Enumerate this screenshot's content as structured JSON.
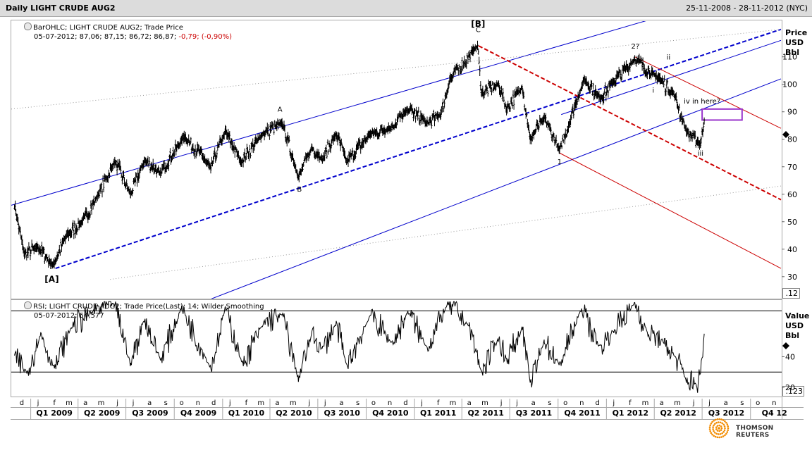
{
  "window": {
    "title": "Daily LIGHT CRUDE AUG2",
    "range": "25-11-2008 - 28-11-2012 (NYC)"
  },
  "price_panel": {
    "legend_line1": "BarOHLC; LIGHT CRUDE AUG2; Trade Price",
    "legend_line2_prefix": "05-07-2012; 87,06; 87,15; 86,72; 86,87;",
    "legend_line2_change": " -0,79; (-0,90%)",
    "axis_title": [
      "Price",
      "USD",
      "Bbl"
    ],
    "corner_label": ".12"
  },
  "rsi_panel": {
    "legend_line1": "RSI; LIGHT CRUDE AUG2; Trade Price(Last); 14; Wilder Smoothing",
    "legend_line2": "05-07-2012; 54,577",
    "axis_title": [
      "Value",
      "USD",
      "Bbl"
    ],
    "corner_label": ".123"
  },
  "branding": {
    "text": "THOMSON REUTERS",
    "logo_color": "#f28c00"
  },
  "chart_data": [
    {
      "type": "line",
      "chart_style": "ohlc-bars",
      "series": [
        {
          "color": "#000000"
        }
      ],
      "ylim": [
        22,
        123
      ],
      "yticks": [
        30,
        40,
        50,
        60,
        70,
        80,
        90,
        100,
        110
      ],
      "x_range": [
        "2008-11-25",
        "2012-11-28"
      ],
      "anchors": [
        [
          "2008-12-01",
          56
        ],
        [
          "2008-12-20",
          38
        ],
        [
          "2009-01-15",
          41
        ],
        [
          "2009-02-12",
          34
        ],
        [
          "2009-03-10",
          45
        ],
        [
          "2009-04-10",
          50
        ],
        [
          "2009-05-10",
          60
        ],
        [
          "2009-06-10",
          72
        ],
        [
          "2009-07-10",
          60
        ],
        [
          "2009-08-05",
          72
        ],
        [
          "2009-09-05",
          68
        ],
        [
          "2009-10-20",
          81
        ],
        [
          "2009-12-10",
          70
        ],
        [
          "2010-01-06",
          83
        ],
        [
          "2010-02-05",
          72
        ],
        [
          "2010-03-20",
          82
        ],
        [
          "2010-04-25",
          86
        ],
        [
          "2010-05-25",
          66
        ],
        [
          "2010-06-20",
          77
        ],
        [
          "2010-07-10",
          73
        ],
        [
          "2010-08-05",
          82
        ],
        [
          "2010-08-25",
          72
        ],
        [
          "2010-10-10",
          82
        ],
        [
          "2010-11-15",
          84
        ],
        [
          "2010-12-20",
          91
        ],
        [
          "2011-01-25",
          86
        ],
        [
          "2011-02-20",
          89
        ],
        [
          "2011-03-10",
          102
        ],
        [
          "2011-05-01",
          114
        ],
        [
          "2011-05-08",
          97
        ],
        [
          "2011-06-10",
          100
        ],
        [
          "2011-06-25",
          91
        ],
        [
          "2011-07-25",
          99
        ],
        [
          "2011-08-09",
          80
        ],
        [
          "2011-09-05",
          88
        ],
        [
          "2011-10-04",
          76
        ],
        [
          "2011-11-20",
          102
        ],
        [
          "2011-12-20",
          95
        ],
        [
          "2012-01-15",
          101
        ],
        [
          "2012-02-24",
          109
        ],
        [
          "2012-04-05",
          103
        ],
        [
          "2012-04-12",
          102
        ],
        [
          "2012-05-10",
          96
        ],
        [
          "2012-06-01",
          83
        ],
        [
          "2012-06-28",
          78
        ],
        [
          "2012-07-05",
          87
        ]
      ],
      "wave_labels": [
        {
          "text": "[A]",
          "date": "2009-02-10",
          "y": 28
        },
        {
          "text": "A",
          "date": "2010-04-20",
          "y": 90
        },
        {
          "text": "B",
          "date": "2010-05-27",
          "y": 61
        },
        {
          "text": "[B]",
          "date": "2011-05-02",
          "y": 121
        },
        {
          "text": "C",
          "date": "2011-05-02",
          "y": 119
        },
        {
          "text": "1",
          "date": "2011-10-04",
          "y": 71
        },
        {
          "text": "2?",
          "date": "2012-02-25",
          "y": 113
        },
        {
          "text": "ii",
          "date": "2012-04-28",
          "y": 109
        },
        {
          "text": "i",
          "date": "2012-03-30",
          "y": 97
        },
        {
          "text": "iii",
          "date": "2012-06-28",
          "y": 74
        },
        {
          "text": "iv in here?",
          "date": "2012-07-01",
          "y": 93
        }
      ],
      "trend_lines": [
        {
          "style": "solid",
          "color": "#0000cc",
          "from": [
            "2008-11-25",
            56
          ],
          "to": [
            "2012-04-01",
            124
          ]
        },
        {
          "style": "dashed",
          "color": "#0000cc",
          "from": [
            "2009-02-17",
            33
          ],
          "to": [
            "2012-11-28",
            120
          ]
        },
        {
          "style": "solid",
          "color": "#0000cc",
          "from": [
            "2011-10-07",
            89
          ],
          "to": [
            "2012-11-28",
            116
          ]
        },
        {
          "style": "solid",
          "color": "#0000cc",
          "from": [
            "2009-11-01",
            19
          ],
          "to": [
            "2012-11-28",
            102
          ]
        },
        {
          "style": "dotted",
          "color": "#999999",
          "from": [
            "2008-11-25",
            91
          ],
          "to": [
            "2012-11-28",
            120
          ]
        },
        {
          "style": "dotted",
          "color": "#999999",
          "from": [
            "2009-06-01",
            29
          ],
          "to": [
            "2012-11-28",
            63
          ]
        },
        {
          "style": "dashed",
          "color": "#cc0000",
          "from": [
            "2011-05-03",
            114
          ],
          "to": [
            "2012-11-28",
            58
          ]
        },
        {
          "style": "solid",
          "color": "#cc0000",
          "from": [
            "2012-02-24",
            110
          ],
          "to": [
            "2012-11-28",
            84
          ]
        },
        {
          "style": "solid",
          "color": "#cc0000",
          "from": [
            "2011-10-04",
            75
          ],
          "to": [
            "2012-11-28",
            33
          ]
        }
      ],
      "box": {
        "color": "#9933cc",
        "from_date": "2012-07-01",
        "to_date": "2012-09-15",
        "y_low": 87,
        "y_high": 91
      }
    },
    {
      "type": "line",
      "series": [
        {
          "color": "#000000"
        }
      ],
      "ylim": [
        14,
        77
      ],
      "yticks": [
        20,
        40
      ],
      "hlines": [
        30,
        70
      ],
      "anchors": [
        [
          "2008-12-01",
          40
        ],
        [
          "2008-12-25",
          30
        ],
        [
          "2009-01-20",
          55
        ],
        [
          "2009-02-15",
          32
        ],
        [
          "2009-03-20",
          60
        ],
        [
          "2009-05-01",
          70
        ],
        [
          "2009-06-10",
          75
        ],
        [
          "2009-07-10",
          35
        ],
        [
          "2009-08-05",
          65
        ],
        [
          "2009-09-05",
          38
        ],
        [
          "2009-10-15",
          72
        ],
        [
          "2009-12-10",
          32
        ],
        [
          "2010-01-06",
          72
        ],
        [
          "2010-02-08",
          35
        ],
        [
          "2010-03-20",
          62
        ],
        [
          "2010-04-25",
          68
        ],
        [
          "2010-05-25",
          25
        ],
        [
          "2010-06-20",
          55
        ],
        [
          "2010-07-10",
          45
        ],
        [
          "2010-08-05",
          62
        ],
        [
          "2010-08-25",
          34
        ],
        [
          "2010-10-10",
          68
        ],
        [
          "2010-11-20",
          48
        ],
        [
          "2010-12-20",
          70
        ],
        [
          "2011-01-25",
          45
        ],
        [
          "2011-03-05",
          75
        ],
        [
          "2011-04-15",
          60
        ],
        [
          "2011-05-08",
          30
        ],
        [
          "2011-06-10",
          52
        ],
        [
          "2011-06-25",
          38
        ],
        [
          "2011-07-25",
          58
        ],
        [
          "2011-08-09",
          22
        ],
        [
          "2011-09-05",
          50
        ],
        [
          "2011-10-04",
          35
        ],
        [
          "2011-11-15",
          72
        ],
        [
          "2011-12-20",
          45
        ],
        [
          "2012-01-15",
          58
        ],
        [
          "2012-02-24",
          75
        ],
        [
          "2012-03-20",
          55
        ],
        [
          "2012-04-20",
          50
        ],
        [
          "2012-05-10",
          40
        ],
        [
          "2012-06-01",
          25
        ],
        [
          "2012-06-21",
          22
        ],
        [
          "2012-06-28",
          30
        ],
        [
          "2012-07-05",
          55
        ]
      ]
    }
  ],
  "x_axis": {
    "months": [
      {
        "l": "d",
        "d": "2008-12-15"
      },
      {
        "l": "j",
        "d": "2009-01-15"
      },
      {
        "l": "f",
        "d": "2009-02-15"
      },
      {
        "l": "m",
        "d": "2009-03-15"
      },
      {
        "l": "a",
        "d": "2009-04-15"
      },
      {
        "l": "m",
        "d": "2009-05-15"
      },
      {
        "l": "j",
        "d": "2009-06-15"
      },
      {
        "l": "j",
        "d": "2009-07-15"
      },
      {
        "l": "a",
        "d": "2009-08-15"
      },
      {
        "l": "s",
        "d": "2009-09-15"
      },
      {
        "l": "o",
        "d": "2009-10-15"
      },
      {
        "l": "n",
        "d": "2009-11-15"
      },
      {
        "l": "d",
        "d": "2009-12-15"
      },
      {
        "l": "j",
        "d": "2010-01-15"
      },
      {
        "l": "f",
        "d": "2010-02-15"
      },
      {
        "l": "m",
        "d": "2010-03-15"
      },
      {
        "l": "a",
        "d": "2010-04-15"
      },
      {
        "l": "m",
        "d": "2010-05-15"
      },
      {
        "l": "j",
        "d": "2010-06-15"
      },
      {
        "l": "j",
        "d": "2010-07-15"
      },
      {
        "l": "a",
        "d": "2010-08-15"
      },
      {
        "l": "s",
        "d": "2010-09-15"
      },
      {
        "l": "o",
        "d": "2010-10-15"
      },
      {
        "l": "n",
        "d": "2010-11-15"
      },
      {
        "l": "d",
        "d": "2010-12-15"
      },
      {
        "l": "j",
        "d": "2011-01-15"
      },
      {
        "l": "f",
        "d": "2011-02-15"
      },
      {
        "l": "m",
        "d": "2011-03-15"
      },
      {
        "l": "a",
        "d": "2011-04-15"
      },
      {
        "l": "m",
        "d": "2011-05-15"
      },
      {
        "l": "j",
        "d": "2011-06-15"
      },
      {
        "l": "j",
        "d": "2011-07-15"
      },
      {
        "l": "a",
        "d": "2011-08-15"
      },
      {
        "l": "s",
        "d": "2011-09-15"
      },
      {
        "l": "o",
        "d": "2011-10-15"
      },
      {
        "l": "n",
        "d": "2011-11-15"
      },
      {
        "l": "d",
        "d": "2011-12-15"
      },
      {
        "l": "j",
        "d": "2012-01-15"
      },
      {
        "l": "f",
        "d": "2012-02-15"
      },
      {
        "l": "m",
        "d": "2012-03-15"
      },
      {
        "l": "a",
        "d": "2012-04-15"
      },
      {
        "l": "m",
        "d": "2012-05-15"
      },
      {
        "l": "j",
        "d": "2012-06-15"
      },
      {
        "l": "j",
        "d": "2012-07-15"
      },
      {
        "l": "a",
        "d": "2012-08-15"
      },
      {
        "l": "s",
        "d": "2012-09-15"
      },
      {
        "l": "o",
        "d": "2012-10-15"
      },
      {
        "l": "n",
        "d": "2012-11-15"
      }
    ],
    "quarters": [
      {
        "l": "Q1 2009",
        "s": "2009-01-01",
        "e": "2009-04-01"
      },
      {
        "l": "Q2 2009",
        "s": "2009-04-01",
        "e": "2009-07-01"
      },
      {
        "l": "Q3 2009",
        "s": "2009-07-01",
        "e": "2009-10-01"
      },
      {
        "l": "Q4 2009",
        "s": "2009-10-01",
        "e": "2010-01-01"
      },
      {
        "l": "Q1 2010",
        "s": "2010-01-01",
        "e": "2010-04-01"
      },
      {
        "l": "Q2 2010",
        "s": "2010-04-01",
        "e": "2010-07-01"
      },
      {
        "l": "Q3 2010",
        "s": "2010-07-01",
        "e": "2010-10-01"
      },
      {
        "l": "Q4 2010",
        "s": "2010-10-01",
        "e": "2011-01-01"
      },
      {
        "l": "Q1 2011",
        "s": "2011-01-01",
        "e": "2011-04-01"
      },
      {
        "l": "Q2 2011",
        "s": "2011-04-01",
        "e": "2011-07-01"
      },
      {
        "l": "Q3 2011",
        "s": "2011-07-01",
        "e": "2011-10-01"
      },
      {
        "l": "Q4 2011",
        "s": "2011-10-01",
        "e": "2012-01-01"
      },
      {
        "l": "Q1 2012",
        "s": "2012-01-01",
        "e": "2012-04-01"
      },
      {
        "l": "Q2 2012",
        "s": "2012-04-01",
        "e": "2012-07-01"
      },
      {
        "l": "Q3 2012",
        "s": "2012-07-01",
        "e": "2012-10-01"
      },
      {
        "l": "Q4 12",
        "s": "2012-10-01",
        "e": "2012-12-31"
      }
    ]
  }
}
